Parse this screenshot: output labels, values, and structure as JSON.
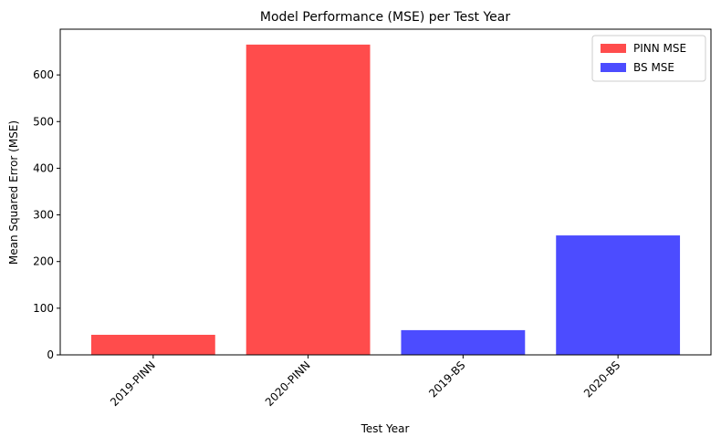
{
  "chart_data": {
    "type": "bar",
    "title": "Model Performance (MSE) per Test Year",
    "xlabel": "Test Year",
    "ylabel": "Mean Squared Error (MSE)",
    "categories": [
      "2019-PINN",
      "2020-PINN",
      "2019-BS",
      "2020-BS"
    ],
    "values": [
      43,
      665,
      53,
      256
    ],
    "bar_series": [
      "PINN MSE",
      "PINN MSE",
      "BS MSE",
      "BS MSE"
    ],
    "yticks": [
      0,
      100,
      200,
      300,
      400,
      500,
      600
    ],
    "ylim": [
      0,
      698
    ],
    "legend": {
      "placement": "top-right",
      "entries": [
        {
          "label": "PINN MSE",
          "color": "#ff4c4c"
        },
        {
          "label": "BS MSE",
          "color": "#4c4cff"
        }
      ]
    },
    "colors": {
      "PINN MSE": "#ff4c4c",
      "BS MSE": "#4c4cff"
    },
    "grid": false
  }
}
